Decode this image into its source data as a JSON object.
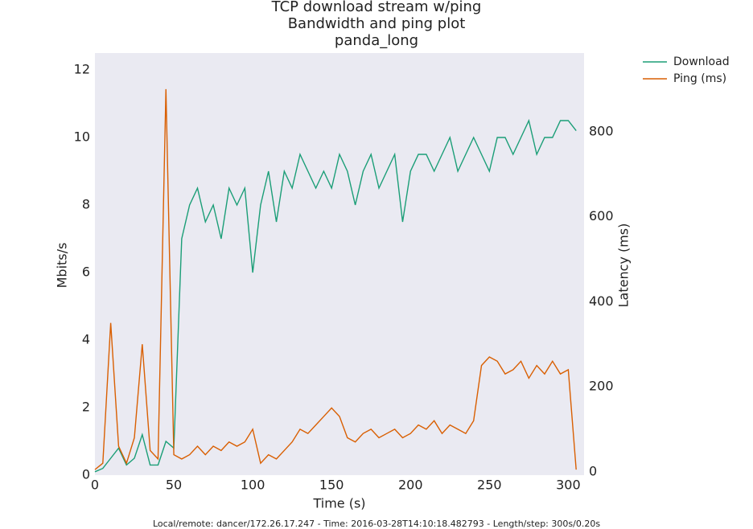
{
  "chart_data": {
    "type": "line",
    "title": [
      "TCP download stream w/ping",
      "Bandwidth and ping plot",
      "panda_long"
    ],
    "xlabel": "Time (s)",
    "ylabel": "Mbits/s",
    "y2label": "Latency (ms)",
    "footer": "Local/remote: dancer/172.26.17.247 - Time: 2016-03-28T14:10:18.482793 - Length/step: 300s/0.20s",
    "x": [
      0,
      5,
      10,
      15,
      20,
      25,
      30,
      35,
      40,
      45,
      50,
      55,
      60,
      65,
      70,
      75,
      80,
      85,
      90,
      95,
      100,
      105,
      110,
      115,
      120,
      125,
      130,
      135,
      140,
      145,
      150,
      155,
      160,
      165,
      170,
      175,
      180,
      185,
      190,
      195,
      200,
      205,
      210,
      215,
      220,
      225,
      230,
      235,
      240,
      245,
      250,
      255,
      260,
      265,
      270,
      275,
      280,
      285,
      290,
      295,
      300,
      305
    ],
    "series": [
      {
        "name": "Download",
        "color": "#1b9e77",
        "values": [
          0.1,
          0.2,
          0.5,
          0.8,
          0.3,
          0.5,
          1.2,
          0.3,
          0.3,
          1.0,
          0.8,
          7,
          8,
          8.5,
          7.5,
          8,
          7,
          8.5,
          8,
          8.5,
          6,
          8,
          9,
          7.5,
          9,
          8.5,
          9.5,
          9,
          8.5,
          9,
          8.5,
          9.5,
          9,
          8,
          9,
          9.5,
          8.5,
          9,
          9.5,
          7.5,
          9,
          9.5,
          9.5,
          9,
          9.5,
          10,
          9,
          9.5,
          10,
          9.5,
          9,
          10,
          10,
          9.5,
          10,
          10.5,
          9.5,
          10,
          10,
          10.5,
          10.5,
          10.2
        ]
      },
      {
        "name": "Ping (ms)",
        "color": "#d95f02",
        "axis": "y2",
        "values": [
          5,
          20,
          350,
          60,
          20,
          80,
          300,
          50,
          30,
          900,
          40,
          30,
          40,
          60,
          40,
          60,
          50,
          70,
          60,
          70,
          100,
          20,
          40,
          30,
          50,
          70,
          100,
          90,
          110,
          130,
          150,
          130,
          80,
          70,
          90,
          100,
          80,
          90,
          100,
          80,
          90,
          110,
          100,
          120,
          90,
          110,
          100,
          90,
          120,
          250,
          270,
          260,
          230,
          240,
          260,
          220,
          250,
          230,
          260,
          230,
          240,
          5
        ]
      }
    ],
    "xlim": [
      0,
      310
    ],
    "xticks": [
      0,
      50,
      100,
      150,
      200,
      250,
      300
    ],
    "ylim": [
      0,
      12.5
    ],
    "yticks": [
      0,
      2,
      4,
      6,
      8,
      10,
      12
    ],
    "y2lim": [
      -8,
      985
    ],
    "y2ticks": [
      0,
      200,
      400,
      600,
      800
    ],
    "grid": false,
    "legend": "outside upper right"
  }
}
